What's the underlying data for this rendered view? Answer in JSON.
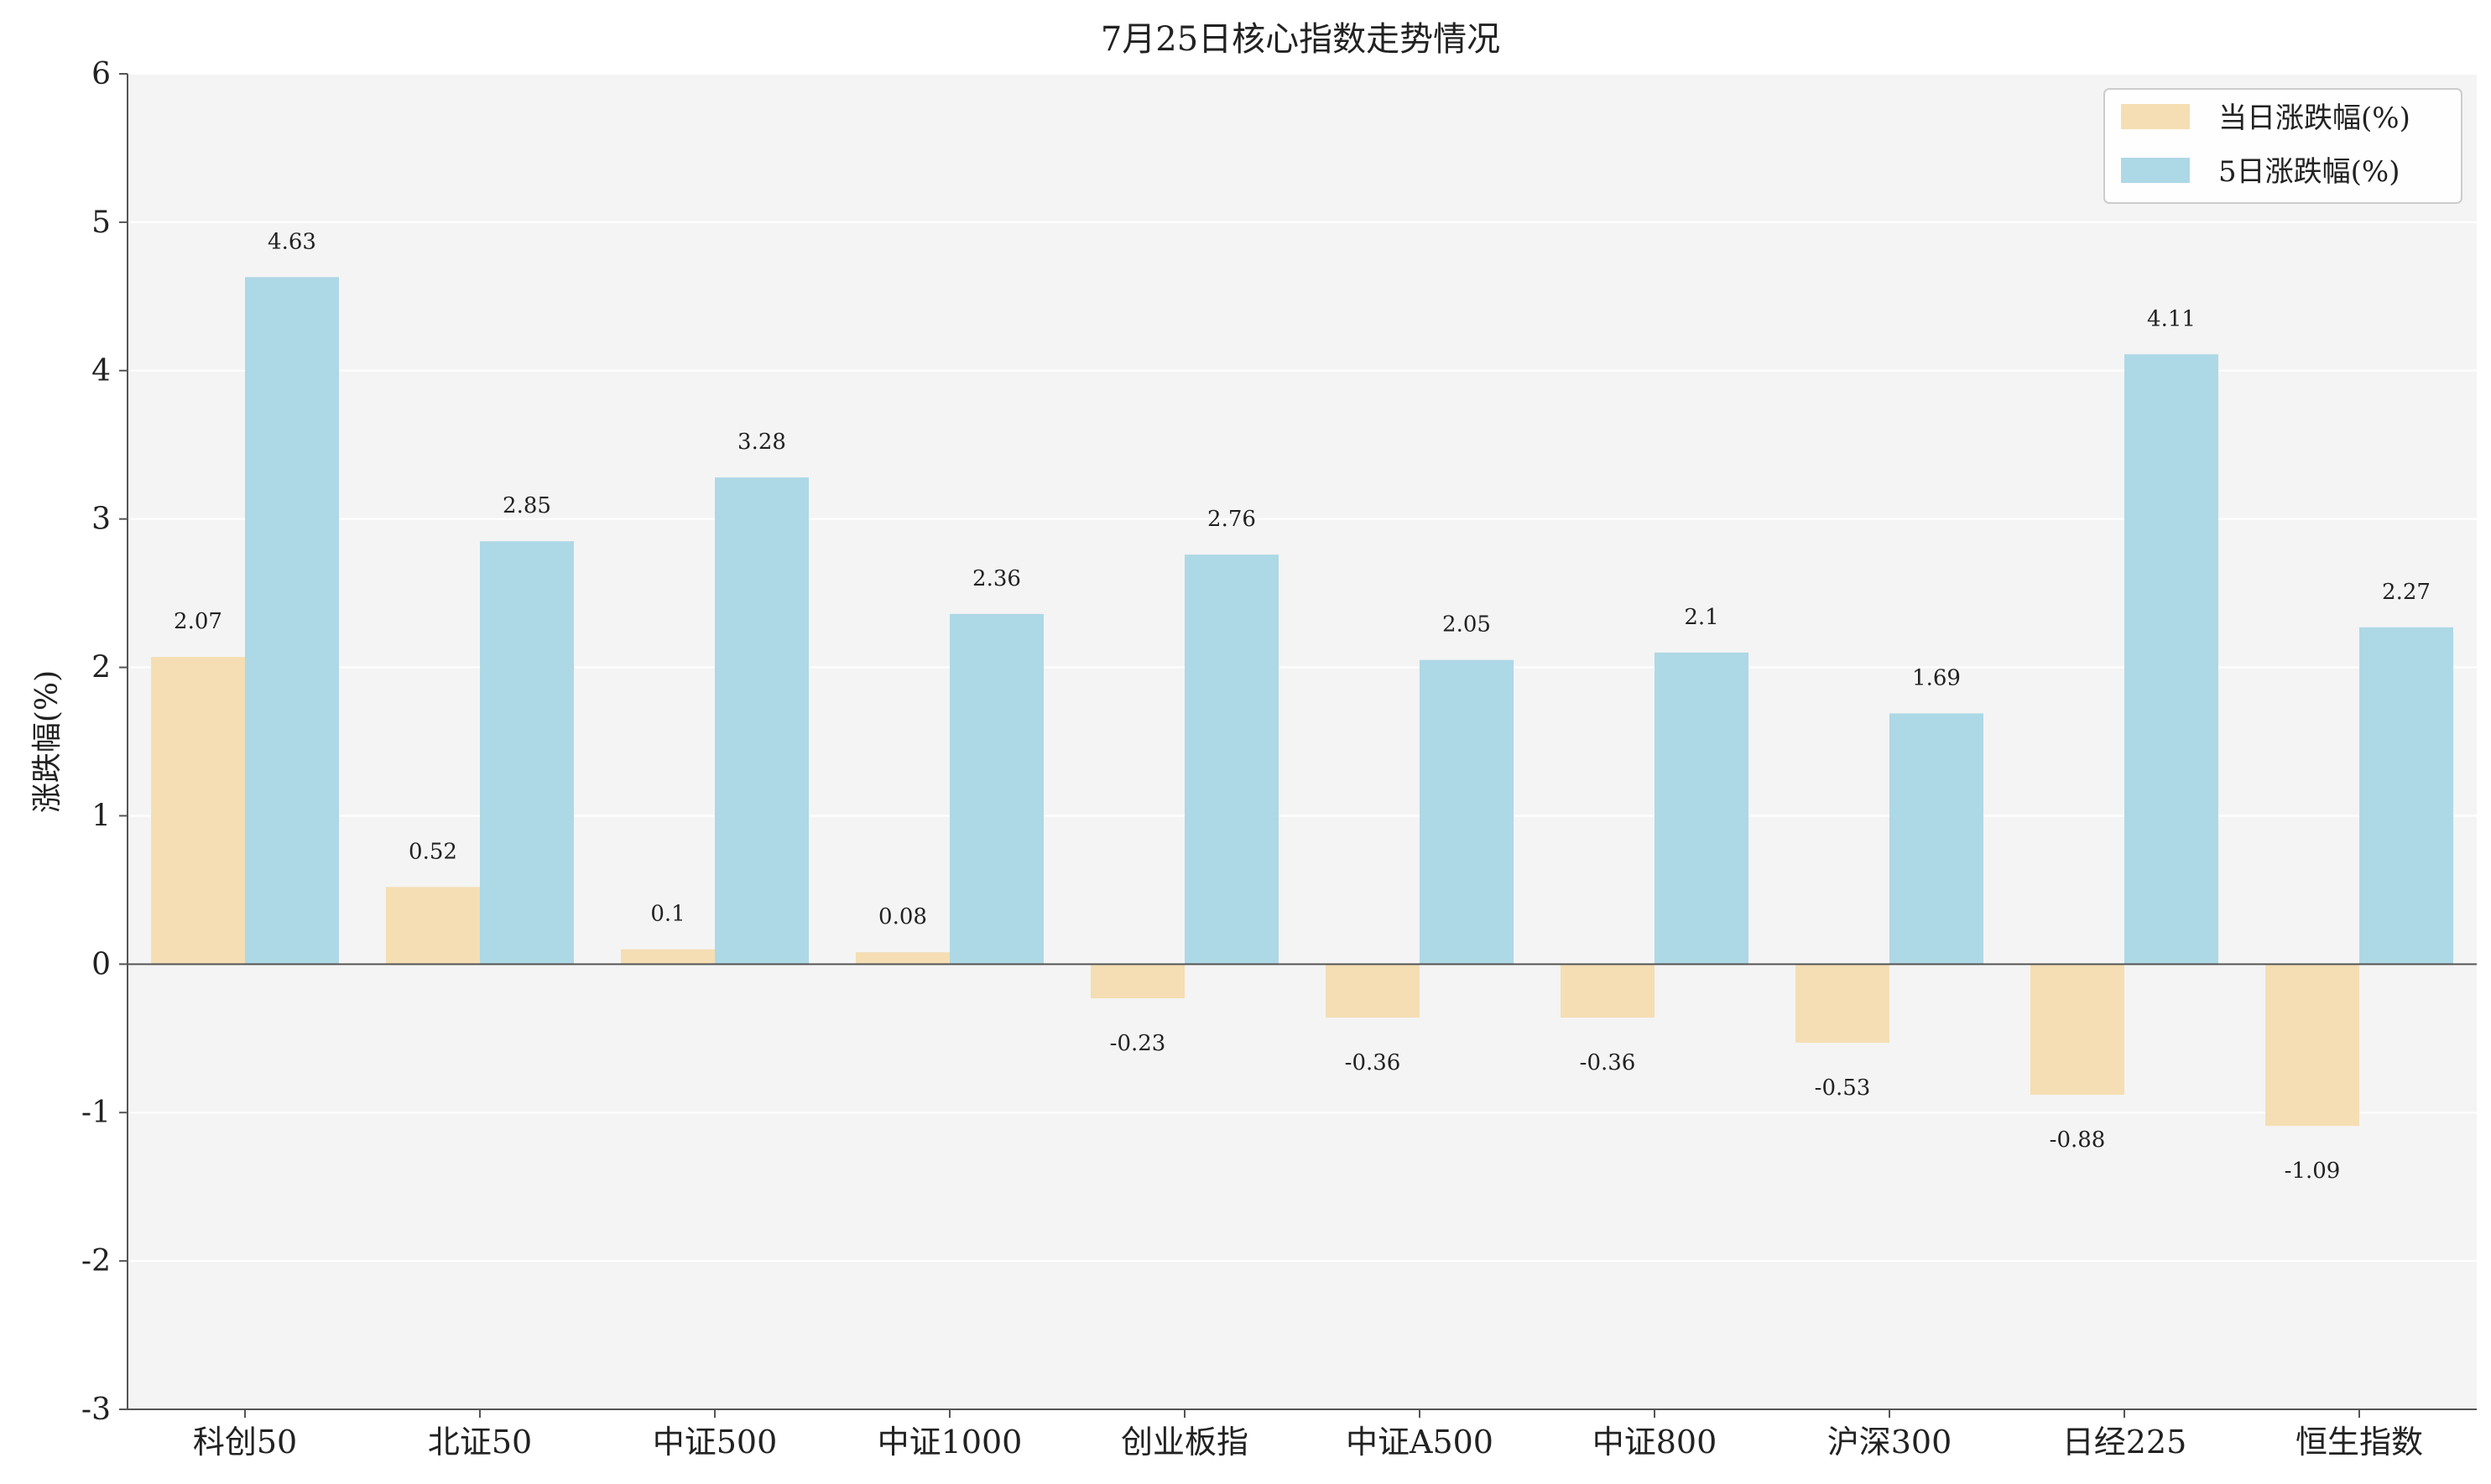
{
  "chart_data": {
    "type": "bar",
    "title": "7月25日核心指数走势情况",
    "xlabel": "",
    "ylabel": "涨跌幅(%)",
    "ylim": [
      -3,
      6
    ],
    "yticks": [
      -3,
      -2,
      -1,
      0,
      1,
      2,
      3,
      4,
      5,
      6
    ],
    "grid": true,
    "legend_position": "top-right",
    "categories": [
      "科创50",
      "北证50",
      "中证500",
      "中证1000",
      "创业板指",
      "中证A500",
      "中证800",
      "沪深300",
      "日经225",
      "恒生指数"
    ],
    "series": [
      {
        "name": "当日涨跌幅(%)",
        "color": "#f5deb3",
        "values": [
          2.07,
          0.52,
          0.1,
          0.08,
          -0.23,
          -0.36,
          -0.36,
          -0.53,
          -0.88,
          -1.09
        ],
        "labels": [
          "2.07",
          "0.52",
          "0.1",
          "0.08",
          "-0.23",
          "-0.36",
          "-0.36",
          "-0.53",
          "-0.88",
          "-1.09"
        ]
      },
      {
        "name": "5日涨跌幅(%)",
        "color": "#add8e6",
        "values": [
          4.63,
          2.85,
          3.28,
          2.36,
          2.76,
          2.05,
          2.1,
          1.69,
          4.11,
          2.27
        ],
        "labels": [
          "4.63",
          "2.85",
          "3.28",
          "2.36",
          "2.76",
          "2.05",
          "2.1",
          "1.69",
          "4.11",
          "2.27"
        ]
      }
    ],
    "colors": {
      "plot_background": "#f4f4f4",
      "grid": "#ffffff",
      "axis": "#555555"
    }
  }
}
